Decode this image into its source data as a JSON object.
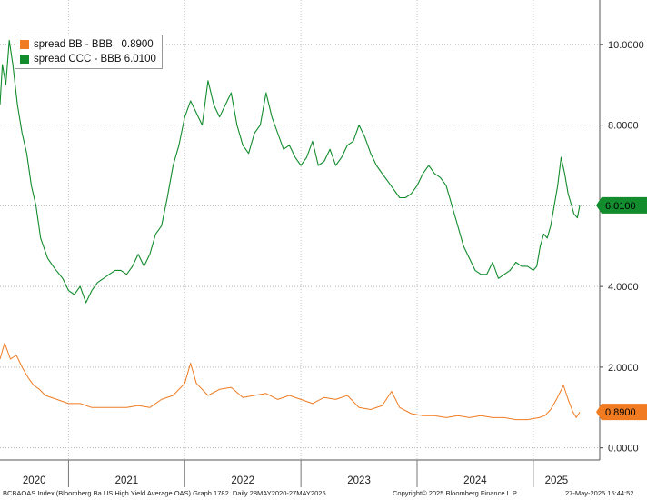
{
  "legend": {
    "series1_label": "spread BB - BBB   0.8900",
    "series2_label": "spread CCC - BBB 6.0100"
  },
  "footer": {
    "source": "BCBAOAS Index (Bloomberg Ba US High Yield Average OAS) Graph 1782  Daily 28MAY2020-27MAY2025",
    "copyright": "Copyright© 2025 Bloomberg Finance L.P.",
    "timestamp": "27-May-2025 15:44:52"
  },
  "chart_data": {
    "type": "line",
    "y_ticks": [
      "10.0000",
      "8.0000",
      "6.0000",
      "4.0000",
      "2.0000",
      "0.0000"
    ],
    "y_tick_values": [
      10,
      8,
      6,
      4,
      2,
      0
    ],
    "ylim": [
      -0.3,
      11.1
    ],
    "x_tick_labels": [
      "2020",
      "2021",
      "2022",
      "2023",
      "2024",
      "2025"
    ],
    "x_range": [
      2020.41,
      2025.4
    ],
    "grid": true,
    "legend_position": "top-left",
    "series": [
      {
        "name": "spread BB - BBB",
        "color": "#f07b21",
        "last_value_label": "0.8900",
        "points": [
          [
            2020.41,
            2.2
          ],
          [
            2020.45,
            2.6
          ],
          [
            2020.5,
            2.2
          ],
          [
            2020.55,
            2.3
          ],
          [
            2020.6,
            2.0
          ],
          [
            2020.65,
            1.75
          ],
          [
            2020.7,
            1.55
          ],
          [
            2020.75,
            1.45
          ],
          [
            2020.8,
            1.3
          ],
          [
            2020.9,
            1.2
          ],
          [
            2021.0,
            1.1
          ],
          [
            2021.1,
            1.1
          ],
          [
            2021.2,
            1.0
          ],
          [
            2021.3,
            1.0
          ],
          [
            2021.4,
            1.0
          ],
          [
            2021.5,
            1.0
          ],
          [
            2021.6,
            1.05
          ],
          [
            2021.7,
            1.0
          ],
          [
            2021.8,
            1.2
          ],
          [
            2021.9,
            1.3
          ],
          [
            2022.0,
            1.6
          ],
          [
            2022.05,
            2.1
          ],
          [
            2022.1,
            1.6
          ],
          [
            2022.2,
            1.3
          ],
          [
            2022.3,
            1.45
          ],
          [
            2022.4,
            1.5
          ],
          [
            2022.5,
            1.25
          ],
          [
            2022.6,
            1.3
          ],
          [
            2022.7,
            1.35
          ],
          [
            2022.8,
            1.2
          ],
          [
            2022.9,
            1.3
          ],
          [
            2023.0,
            1.2
          ],
          [
            2023.1,
            1.1
          ],
          [
            2023.2,
            1.25
          ],
          [
            2023.3,
            1.2
          ],
          [
            2023.4,
            1.3
          ],
          [
            2023.5,
            1.0
          ],
          [
            2023.6,
            0.95
          ],
          [
            2023.7,
            1.05
          ],
          [
            2023.78,
            1.4
          ],
          [
            2023.85,
            1.0
          ],
          [
            2023.95,
            0.85
          ],
          [
            2024.05,
            0.8
          ],
          [
            2024.15,
            0.8
          ],
          [
            2024.25,
            0.75
          ],
          [
            2024.35,
            0.8
          ],
          [
            2024.45,
            0.75
          ],
          [
            2024.55,
            0.8
          ],
          [
            2024.65,
            0.75
          ],
          [
            2024.75,
            0.75
          ],
          [
            2024.85,
            0.7
          ],
          [
            2024.95,
            0.7
          ],
          [
            2025.05,
            0.75
          ],
          [
            2025.1,
            0.8
          ],
          [
            2025.15,
            0.95
          ],
          [
            2025.2,
            1.2
          ],
          [
            2025.26,
            1.55
          ],
          [
            2025.3,
            1.2
          ],
          [
            2025.34,
            0.9
          ],
          [
            2025.37,
            0.75
          ],
          [
            2025.4,
            0.89
          ]
        ]
      },
      {
        "name": "spread CCC - BBB",
        "color": "#128c2d",
        "last_value_label": "6.0100",
        "points": [
          [
            2020.41,
            8.5
          ],
          [
            2020.43,
            9.5
          ],
          [
            2020.46,
            9.0
          ],
          [
            2020.49,
            10.1
          ],
          [
            2020.52,
            9.5
          ],
          [
            2020.56,
            8.5
          ],
          [
            2020.6,
            7.8
          ],
          [
            2020.64,
            7.3
          ],
          [
            2020.68,
            6.5
          ],
          [
            2020.72,
            6.0
          ],
          [
            2020.76,
            5.2
          ],
          [
            2020.82,
            4.7
          ],
          [
            2020.88,
            4.45
          ],
          [
            2020.95,
            4.2
          ],
          [
            2021.0,
            3.9
          ],
          [
            2021.05,
            3.8
          ],
          [
            2021.1,
            4.0
          ],
          [
            2021.15,
            3.6
          ],
          [
            2021.2,
            3.9
          ],
          [
            2021.25,
            4.1
          ],
          [
            2021.3,
            4.2
          ],
          [
            2021.35,
            4.3
          ],
          [
            2021.4,
            4.4
          ],
          [
            2021.45,
            4.4
          ],
          [
            2021.5,
            4.3
          ],
          [
            2021.55,
            4.5
          ],
          [
            2021.6,
            4.8
          ],
          [
            2021.65,
            4.5
          ],
          [
            2021.7,
            4.8
          ],
          [
            2021.75,
            5.3
          ],
          [
            2021.8,
            5.5
          ],
          [
            2021.85,
            6.2
          ],
          [
            2021.9,
            7.0
          ],
          [
            2021.95,
            7.5
          ],
          [
            2022.0,
            8.2
          ],
          [
            2022.05,
            8.6
          ],
          [
            2022.1,
            8.3
          ],
          [
            2022.15,
            8.0
          ],
          [
            2022.2,
            9.1
          ],
          [
            2022.25,
            8.5
          ],
          [
            2022.3,
            8.2
          ],
          [
            2022.35,
            8.5
          ],
          [
            2022.4,
            8.8
          ],
          [
            2022.45,
            8.0
          ],
          [
            2022.5,
            7.5
          ],
          [
            2022.55,
            7.3
          ],
          [
            2022.6,
            7.8
          ],
          [
            2022.65,
            8.0
          ],
          [
            2022.7,
            8.8
          ],
          [
            2022.75,
            8.2
          ],
          [
            2022.8,
            7.8
          ],
          [
            2022.85,
            7.4
          ],
          [
            2022.9,
            7.5
          ],
          [
            2022.95,
            7.2
          ],
          [
            2023.0,
            7.0
          ],
          [
            2023.05,
            7.2
          ],
          [
            2023.1,
            7.6
          ],
          [
            2023.15,
            7.0
          ],
          [
            2023.2,
            7.1
          ],
          [
            2023.25,
            7.4
          ],
          [
            2023.3,
            7.0
          ],
          [
            2023.35,
            7.2
          ],
          [
            2023.4,
            7.5
          ],
          [
            2023.45,
            7.6
          ],
          [
            2023.5,
            8.0
          ],
          [
            2023.55,
            7.7
          ],
          [
            2023.6,
            7.3
          ],
          [
            2023.65,
            7.0
          ],
          [
            2023.7,
            6.8
          ],
          [
            2023.75,
            6.6
          ],
          [
            2023.8,
            6.4
          ],
          [
            2023.85,
            6.2
          ],
          [
            2023.9,
            6.2
          ],
          [
            2023.95,
            6.3
          ],
          [
            2024.0,
            6.5
          ],
          [
            2024.05,
            6.8
          ],
          [
            2024.1,
            7.0
          ],
          [
            2024.15,
            6.8
          ],
          [
            2024.2,
            6.7
          ],
          [
            2024.25,
            6.5
          ],
          [
            2024.3,
            6.0
          ],
          [
            2024.35,
            5.5
          ],
          [
            2024.4,
            5.0
          ],
          [
            2024.45,
            4.7
          ],
          [
            2024.5,
            4.4
          ],
          [
            2024.55,
            4.3
          ],
          [
            2024.6,
            4.3
          ],
          [
            2024.65,
            4.6
          ],
          [
            2024.7,
            4.2
          ],
          [
            2024.75,
            4.3
          ],
          [
            2024.8,
            4.4
          ],
          [
            2024.85,
            4.6
          ],
          [
            2024.9,
            4.5
          ],
          [
            2024.95,
            4.5
          ],
          [
            2025.0,
            4.4
          ],
          [
            2025.03,
            4.5
          ],
          [
            2025.06,
            5.0
          ],
          [
            2025.09,
            5.3
          ],
          [
            2025.12,
            5.2
          ],
          [
            2025.15,
            5.5
          ],
          [
            2025.18,
            6.0
          ],
          [
            2025.21,
            6.5
          ],
          [
            2025.24,
            7.2
          ],
          [
            2025.27,
            6.8
          ],
          [
            2025.3,
            6.3
          ],
          [
            2025.33,
            6.0
          ],
          [
            2025.35,
            5.8
          ],
          [
            2025.38,
            5.7
          ],
          [
            2025.4,
            6.01
          ]
        ]
      }
    ]
  }
}
